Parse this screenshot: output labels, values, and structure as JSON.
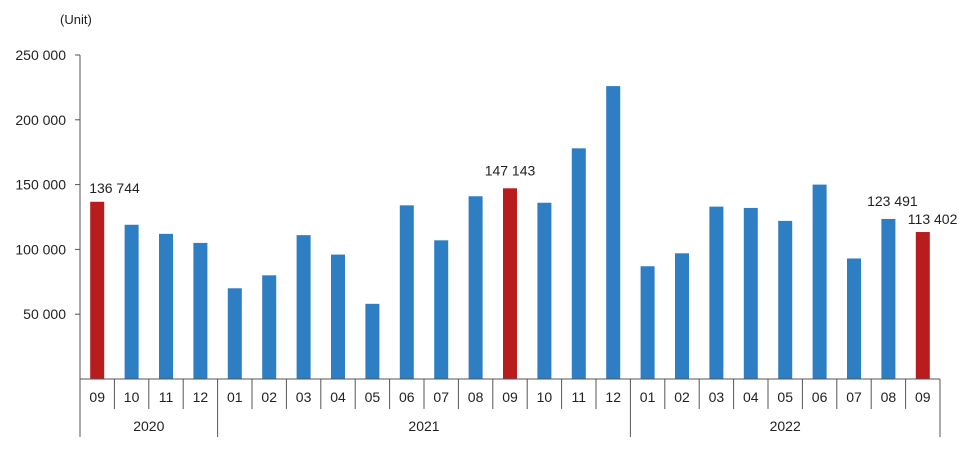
{
  "chart_data": {
    "type": "bar",
    "unit_label": "(Unit)",
    "categories": [
      "09",
      "10",
      "11",
      "12",
      "01",
      "02",
      "03",
      "04",
      "05",
      "06",
      "07",
      "08",
      "09",
      "10",
      "11",
      "12",
      "01",
      "02",
      "03",
      "04",
      "05",
      "06",
      "07",
      "08",
      "09"
    ],
    "years": [
      {
        "label": "2020",
        "months": 4
      },
      {
        "label": "2021",
        "months": 12
      },
      {
        "label": "2022",
        "months": 9
      }
    ],
    "values": [
      136744,
      119000,
      112000,
      105000,
      70000,
      80000,
      111000,
      96000,
      58000,
      134000,
      107000,
      141000,
      147143,
      136000,
      178000,
      226000,
      87000,
      97000,
      133000,
      132000,
      122000,
      150000,
      93000,
      123491,
      113402
    ],
    "highlight_indices": [
      0,
      12,
      24
    ],
    "data_labels": [
      {
        "index": 0,
        "text": "136 744"
      },
      {
        "index": 12,
        "text": "147 143"
      },
      {
        "index": 23,
        "text": "123 491"
      },
      {
        "index": 24,
        "text": "113 402"
      }
    ],
    "yticks": [
      {
        "value": 50000,
        "label": "50 000"
      },
      {
        "value": 100000,
        "label": "100 000"
      },
      {
        "value": 150000,
        "label": "150 000"
      },
      {
        "value": 200000,
        "label": "200 000"
      },
      {
        "value": 250000,
        "label": "250 000"
      }
    ],
    "ylim": [
      0,
      250000
    ],
    "grid": false,
    "colors": {
      "bar": "#2E7EC3",
      "highlight": "#B81C1C",
      "axis": "#555555"
    }
  }
}
